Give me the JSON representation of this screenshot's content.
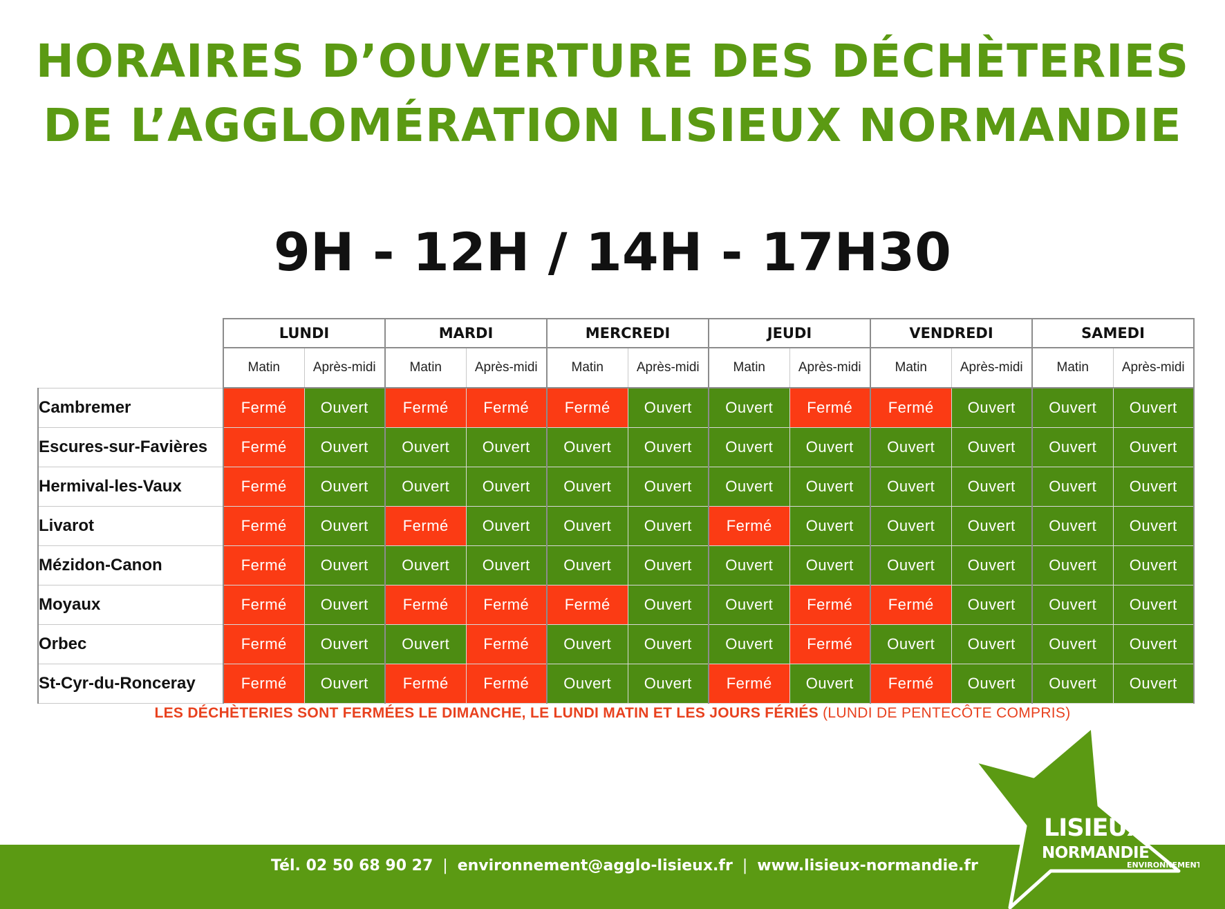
{
  "title": {
    "line1": "HORAIRES D’OUVERTURE DES DÉCHÈTERIES",
    "line2": "DE L’AGGLOMÉRATION LISIEUX NORMANDIE"
  },
  "hours": "9H - 12H / 14H - 17H30",
  "schedule": {
    "days": [
      "LUNDI",
      "MARDI",
      "MERCREDI",
      "JEUDI",
      "VENDREDI",
      "SAMEDI"
    ],
    "parts": [
      "Matin",
      "Après-midi"
    ],
    "sites": [
      {
        "name": "Cambremer",
        "slots": [
          "Fermé",
          "Ouvert",
          "Fermé",
          "Fermé",
          "Fermé",
          "Ouvert",
          "Ouvert",
          "Fermé",
          "Fermé",
          "Ouvert",
          "Ouvert",
          "Ouvert"
        ]
      },
      {
        "name": "Escures-sur-Favières",
        "slots": [
          "Fermé",
          "Ouvert",
          "Ouvert",
          "Ouvert",
          "Ouvert",
          "Ouvert",
          "Ouvert",
          "Ouvert",
          "Ouvert",
          "Ouvert",
          "Ouvert",
          "Ouvert"
        ]
      },
      {
        "name": "Hermival-les-Vaux",
        "slots": [
          "Fermé",
          "Ouvert",
          "Ouvert",
          "Ouvert",
          "Ouvert",
          "Ouvert",
          "Ouvert",
          "Ouvert",
          "Ouvert",
          "Ouvert",
          "Ouvert",
          "Ouvert"
        ]
      },
      {
        "name": "Livarot",
        "slots": [
          "Fermé",
          "Ouvert",
          "Fermé",
          "Ouvert",
          "Ouvert",
          "Ouvert",
          "Fermé",
          "Ouvert",
          "Ouvert",
          "Ouvert",
          "Ouvert",
          "Ouvert"
        ]
      },
      {
        "name": "Mézidon-Canon",
        "slots": [
          "Fermé",
          "Ouvert",
          "Ouvert",
          "Ouvert",
          "Ouvert",
          "Ouvert",
          "Ouvert",
          "Ouvert",
          "Ouvert",
          "Ouvert",
          "Ouvert",
          "Ouvert"
        ]
      },
      {
        "name": "Moyaux",
        "slots": [
          "Fermé",
          "Ouvert",
          "Fermé",
          "Fermé",
          "Fermé",
          "Ouvert",
          "Ouvert",
          "Fermé",
          "Fermé",
          "Ouvert",
          "Ouvert",
          "Ouvert"
        ]
      },
      {
        "name": "Orbec",
        "slots": [
          "Fermé",
          "Ouvert",
          "Ouvert",
          "Fermé",
          "Ouvert",
          "Ouvert",
          "Ouvert",
          "Fermé",
          "Ouvert",
          "Ouvert",
          "Ouvert",
          "Ouvert"
        ]
      },
      {
        "name": "St-Cyr-du-Ronceray",
        "slots": [
          "Fermé",
          "Ouvert",
          "Fermé",
          "Fermé",
          "Ouvert",
          "Ouvert",
          "Fermé",
          "Ouvert",
          "Fermé",
          "Ouvert",
          "Ouvert",
          "Ouvert"
        ]
      }
    ]
  },
  "note": {
    "bold": "LES DÉCHÈTERIES SONT FERMÉES LE DIMANCHE, LE LUNDI MATIN ET LES JOURS FÉRIÉS",
    "normal": "(LUNDI DE PENTECÔTE COMPRIS)"
  },
  "footer": {
    "phone": "Tél. 02 50 68 90 27",
    "separator": "|",
    "email": "environnement@agglo-lisieux.fr",
    "website": "www.lisieux-normandie.fr"
  },
  "logo": {
    "line1": "LISIEUX",
    "line2": "NORMANDIE",
    "subtitle": "ENVIRONNEMENT"
  },
  "colors": {
    "brand_green": "#5b9a13",
    "open_green": "#4d8c12",
    "closed_red": "#fb3b14",
    "note_red": "#e8411e"
  }
}
